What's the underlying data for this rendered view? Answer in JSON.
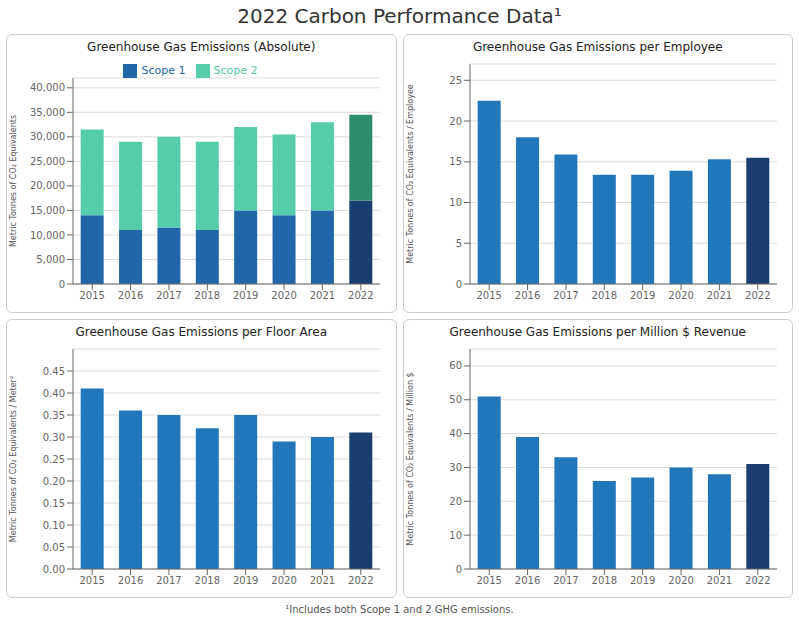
{
  "title": "2022 Carbon Performance Data¹",
  "annotations": [
    "¹Includes both Scope 1 and 2 GHG emissions."
  ],
  "chart_data": [
    {
      "type": "bar",
      "title": "Greenhouse Gas Emissions (Absolute)",
      "ylabel": "Metric Tonnes of CO₂ Equivalents",
      "categories": [
        "2015",
        "2016",
        "2017",
        "2018",
        "2019",
        "2020",
        "2021",
        "2022"
      ],
      "series": [
        {
          "name": "Scope 1",
          "color": "#2266AA",
          "colors": [
            "#2266AA",
            "#2266AA",
            "#2266AA",
            "#2266AA",
            "#2266AA",
            "#2266AA",
            "#2266AA",
            "#1A3F6F"
          ],
          "values": [
            14000,
            11000,
            11500,
            11000,
            15000,
            14000,
            15000,
            17000
          ]
        },
        {
          "name": "Scope 2",
          "color": "#55CCAA",
          "colors": [
            "#55CCAA",
            "#55CCAA",
            "#55CCAA",
            "#55CCAA",
            "#55CCAA",
            "#55CCAA",
            "#55CCAA",
            "#2E8B6E"
          ],
          "values": [
            17500,
            18000,
            18500,
            18000,
            17000,
            16500,
            18000,
            17500
          ]
        }
      ],
      "stacked": true,
      "legend": "top",
      "grid": true,
      "ylim": [
        0,
        42000
      ],
      "yticks": [
        0,
        {
          "value": 5000,
          "label": "5,000"
        },
        {
          "value": 10000,
          "label": "10,000"
        },
        {
          "value": 15000,
          "label": "15,000"
        },
        {
          "value": 20000,
          "label": "20,000"
        },
        {
          "value": 25000,
          "label": "25,000"
        },
        {
          "value": 30000,
          "label": "30,000"
        },
        {
          "value": 35000,
          "label": "35,000"
        },
        {
          "value": 40000,
          "label": "40,000"
        }
      ]
    },
    {
      "type": "bar",
      "title": "Greenhouse Gas Emissions per Employee",
      "ylabel": "Metric Tonnes of CO₂ Equivalents / Employee",
      "categories": [
        "2015",
        "2016",
        "2017",
        "2018",
        "2019",
        "2020",
        "2021",
        "2022"
      ],
      "values": [
        22.5,
        18.0,
        15.9,
        13.4,
        13.4,
        13.9,
        15.3,
        15.5
      ],
      "colors": [
        "#2277BB",
        "#2277BB",
        "#2277BB",
        "#2277BB",
        "#2277BB",
        "#2277BB",
        "#2277BB",
        "#1A3F6F"
      ],
      "grid": true,
      "ylim": [
        0,
        27
      ],
      "yticks": [
        0,
        5,
        10,
        15,
        20,
        25
      ]
    },
    {
      "type": "bar",
      "title": "Greenhouse Gas Emissions per Floor Area",
      "ylabel": "Metric Tonnes of CO₂ Equivalents / Meter²",
      "categories": [
        "2015",
        "2016",
        "2017",
        "2018",
        "2019",
        "2020",
        "2021",
        "2022"
      ],
      "values": [
        0.41,
        0.36,
        0.35,
        0.32,
        0.35,
        0.29,
        0.3,
        0.31
      ],
      "colors": [
        "#2277BB",
        "#2277BB",
        "#2277BB",
        "#2277BB",
        "#2277BB",
        "#2277BB",
        "#2277BB",
        "#1A3F6F"
      ],
      "grid": true,
      "ylim": [
        0,
        0.5
      ],
      "yticks": [
        {
          "value": 0,
          "label": "0.00"
        },
        0.05,
        {
          "value": 0.1,
          "label": "0.10"
        },
        0.15,
        {
          "value": 0.2,
          "label": "0.20"
        },
        0.25,
        {
          "value": 0.3,
          "label": "0.30"
        },
        0.35,
        {
          "value": 0.4,
          "label": "0.40"
        },
        0.45
      ]
    },
    {
      "type": "bar",
      "title": "Greenhouse Gas Emissions per Million $ Revenue",
      "ylabel": "Metric Tonnes of CO₂ Equivalents / Million $",
      "categories": [
        "2015",
        "2016",
        "2017",
        "2018",
        "2019",
        "2020",
        "2021",
        "2022"
      ],
      "values": [
        51,
        39,
        33,
        26,
        27,
        30,
        28,
        31
      ],
      "colors": [
        "#2277BB",
        "#2277BB",
        "#2277BB",
        "#2277BB",
        "#2277BB",
        "#2277BB",
        "#2277BB",
        "#1A3F6F"
      ],
      "grid": true,
      "ylim": [
        0,
        65
      ],
      "yticks": [
        0,
        10,
        20,
        30,
        40,
        50,
        60
      ]
    }
  ]
}
